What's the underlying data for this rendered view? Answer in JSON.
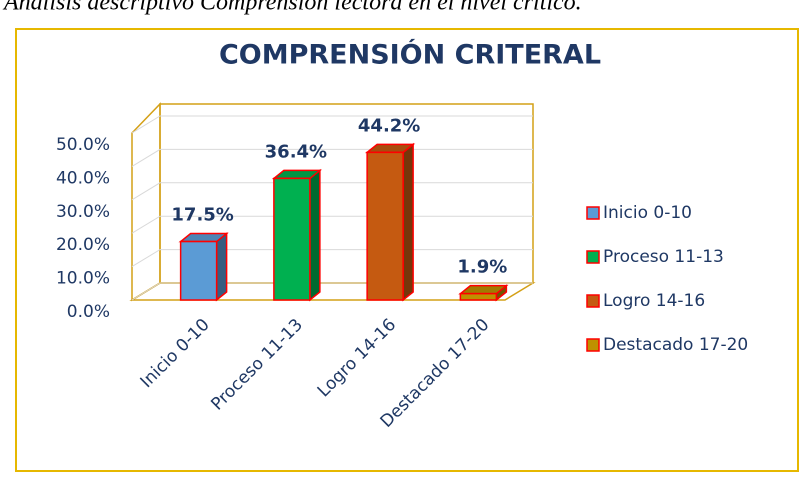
{
  "caption": "Análisis descriptivo Comprensión lectora en el nivel crítico.",
  "chart_data": {
    "type": "bar3d",
    "title": "COMPRENSIÓN CRITERAL",
    "categories": [
      "Inicio 0-10",
      "Proceso 11-13",
      "Logro 14-16",
      "Destacado 17-20"
    ],
    "values": [
      17.5,
      36.4,
      44.2,
      1.9
    ],
    "value_labels": [
      "17.5%",
      "36.4%",
      "44.2%",
      "1.9%"
    ],
    "colors": [
      "#5b9bd5",
      "#00b050",
      "#c55a11",
      "#bf9000"
    ],
    "ylim": [
      0,
      50
    ],
    "yticks": [
      {
        "value": 0,
        "label": "0.0%"
      },
      {
        "value": 10,
        "label": "10.0%"
      },
      {
        "value": 20,
        "label": "20.0%"
      },
      {
        "value": 30,
        "label": "30.0%"
      },
      {
        "value": 40,
        "label": "40.0%"
      },
      {
        "value": 50,
        "label": "50.0%"
      }
    ],
    "grid": true,
    "legend": "right"
  }
}
